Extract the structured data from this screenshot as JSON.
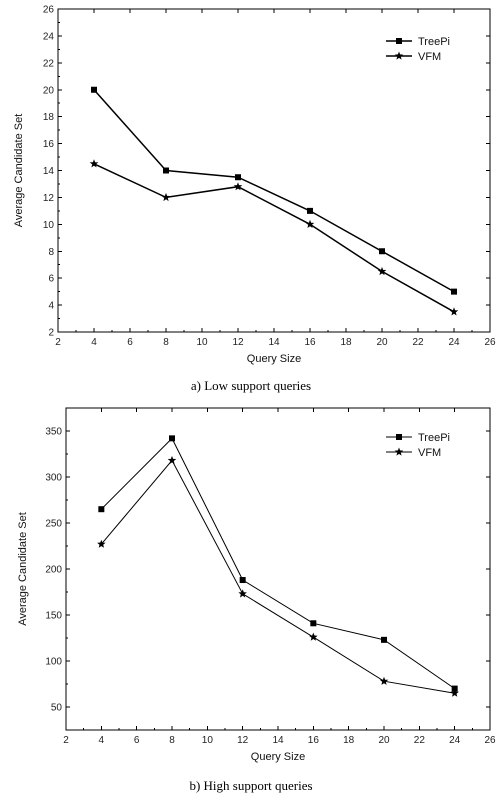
{
  "chart_data": [
    {
      "type": "line",
      "title": "",
      "caption": "a) Low support queries",
      "xlabel": "Query Size",
      "ylabel": "Average Candidate Set",
      "xlim": [
        2,
        26
      ],
      "ylim": [
        2,
        26
      ],
      "xticks": [
        2,
        4,
        6,
        8,
        10,
        12,
        14,
        16,
        18,
        20,
        22,
        24,
        26
      ],
      "yticks": [
        2,
        4,
        6,
        8,
        10,
        12,
        14,
        16,
        18,
        20,
        22,
        24,
        26
      ],
      "grid": false,
      "legend_position": "top-right",
      "x": [
        4,
        8,
        12,
        16,
        20,
        24
      ],
      "series": [
        {
          "name": "TreePi",
          "marker": "square",
          "values": [
            20,
            14,
            13.5,
            11,
            8,
            5
          ]
        },
        {
          "name": "VFM",
          "marker": "star",
          "values": [
            14.5,
            12,
            12.8,
            10,
            6.5,
            3.5
          ]
        }
      ]
    },
    {
      "type": "line",
      "title": "",
      "caption": "b) High support queries",
      "xlabel": "Query Size",
      "ylabel": "Average Candidate Set",
      "xlim": [
        2,
        26
      ],
      "ylim": [
        25,
        375
      ],
      "xticks": [
        2,
        4,
        6,
        8,
        10,
        12,
        14,
        16,
        18,
        20,
        22,
        24,
        26
      ],
      "yticks": [
        50,
        100,
        150,
        200,
        250,
        300,
        350
      ],
      "grid": false,
      "legend_position": "top-right",
      "x": [
        4,
        8,
        12,
        16,
        20,
        24
      ],
      "series": [
        {
          "name": "TreePi",
          "marker": "square",
          "values": [
            265,
            342,
            188,
            141,
            123,
            70
          ]
        },
        {
          "name": "VFM",
          "marker": "star",
          "values": [
            227,
            318,
            173,
            126,
            78,
            65
          ]
        }
      ]
    }
  ]
}
